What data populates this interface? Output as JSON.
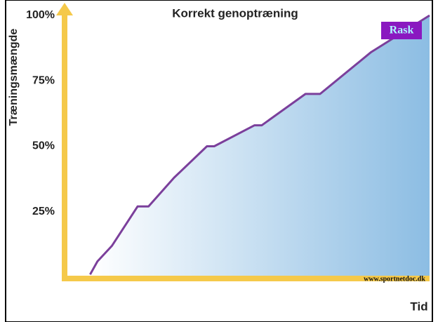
{
  "chart_data": {
    "type": "area",
    "title": "Korrekt genoptræning",
    "y_label": "Træningsmængde",
    "x_label": "Tid",
    "annotations": [
      "Rask",
      "www.sportnetdoc.dk"
    ],
    "x": [
      7,
      9,
      13,
      20,
      23,
      30,
      39,
      41,
      52,
      54,
      66,
      70,
      84,
      100
    ],
    "values": [
      1,
      6,
      12,
      27,
      27,
      38,
      50,
      50,
      58,
      58,
      70,
      70,
      86,
      100
    ],
    "color": "#7b3f9b",
    "xlim": [
      0,
      100
    ],
    "ylim": [
      0,
      100
    ],
    "yticks": [
      {
        "value": 25,
        "label": "25%"
      },
      {
        "value": 50,
        "label": "50%"
      },
      {
        "value": 75,
        "label": "75%"
      },
      {
        "value": 100,
        "label": "100%"
      }
    ]
  }
}
